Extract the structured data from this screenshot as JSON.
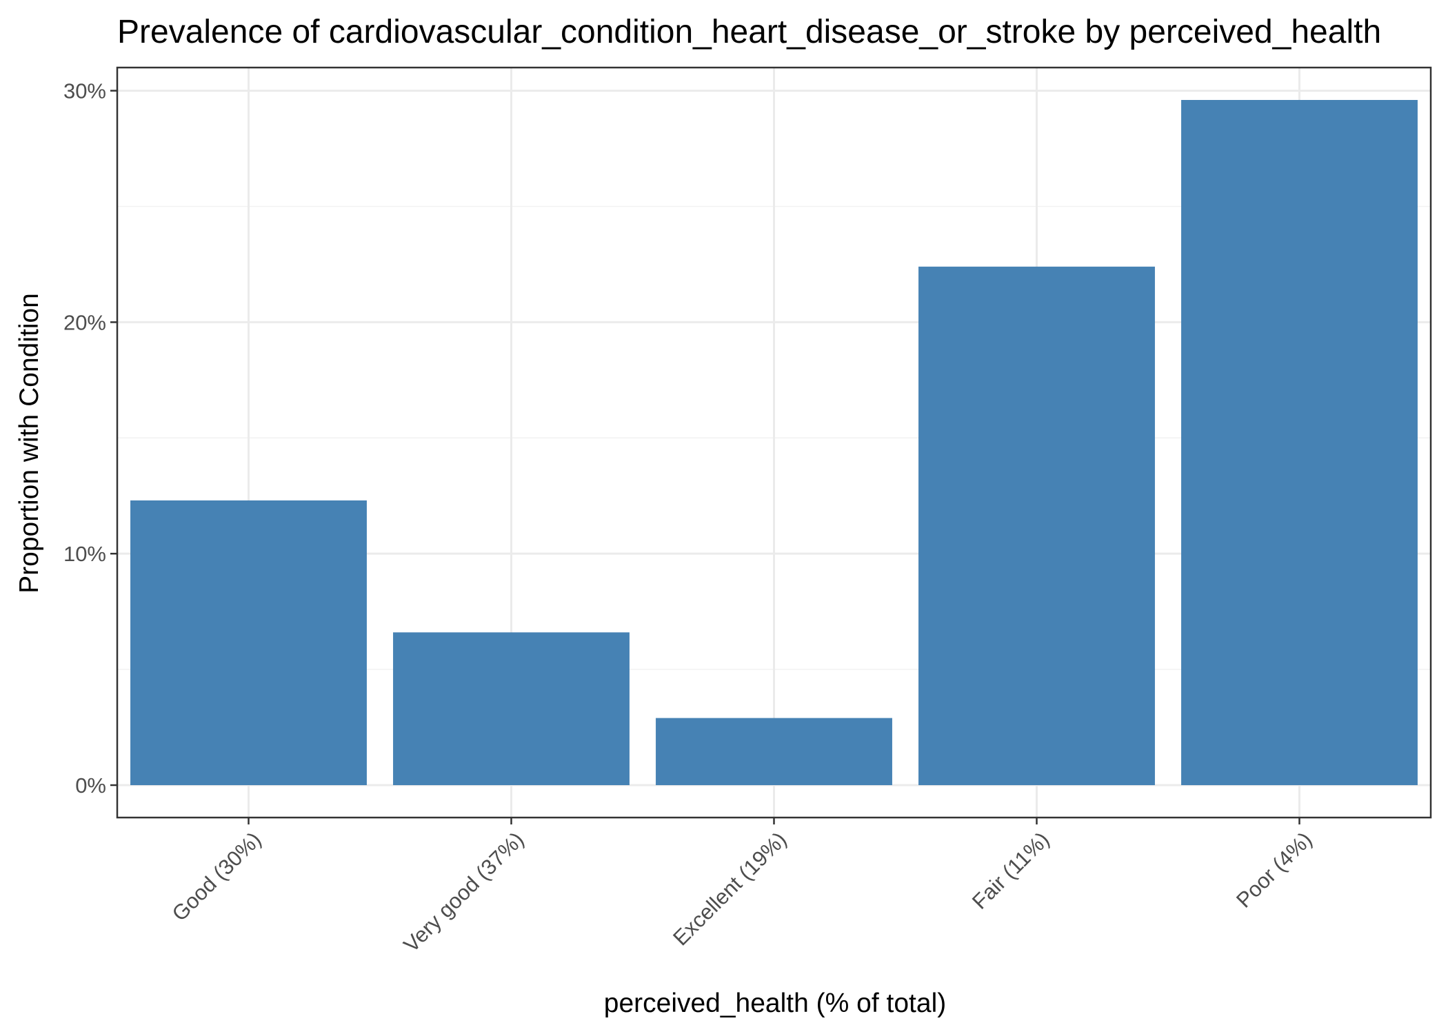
{
  "chart_data": {
    "type": "bar",
    "title": "Prevalence of cardiovascular_condition_heart_disease_or_stroke by perceived_health",
    "xlabel": "perceived_health (% of total)",
    "ylabel": "Proportion with Condition",
    "categories": [
      "Good (30%)",
      "Very good (37%)",
      "Excellent (19%)",
      "Fair (11%)",
      "Poor (4%)"
    ],
    "values": [
      0.123,
      0.066,
      0.029,
      0.224,
      0.296
    ],
    "ylim": [
      -0.014,
      0.31
    ],
    "yticks": [
      0,
      0.1,
      0.2,
      0.3
    ],
    "ytick_labels": [
      "0%",
      "10%",
      "20%",
      "30%"
    ],
    "grid": true,
    "legend": "none",
    "bar_color": "#4682b4"
  }
}
